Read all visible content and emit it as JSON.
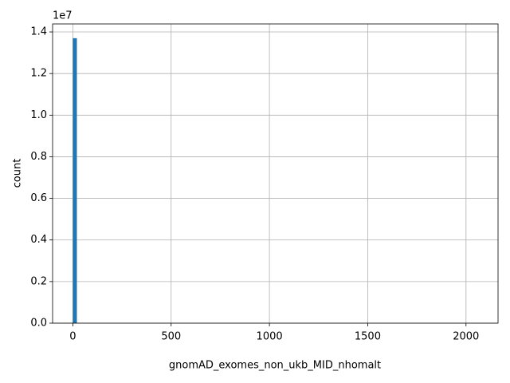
{
  "chart_data": {
    "type": "histogram",
    "xlabel": "gnomAD_exomes_non_ukb_MID_nhomalt",
    "ylabel": "count",
    "y_offset_label": "1e7",
    "color": "#1f77b4",
    "grid": true,
    "bins": [
      0,
      20.6,
      41.2,
      61.8,
      82.4,
      103,
      123.6,
      144.2,
      164.8,
      185.4,
      206,
      226.6,
      247.2,
      267.8,
      288.4,
      309,
      329.6,
      350.2,
      370.8,
      391.4,
      412,
      432.6,
      453.2,
      473.8,
      494.4,
      515,
      535.6,
      556.2,
      576.8,
      597.4,
      618,
      638.6,
      659.2,
      679.8,
      700.4,
      721,
      741.6,
      762.2,
      782.8,
      803.4,
      824,
      844.6,
      865.2,
      885.8,
      906.4,
      927,
      947.6,
      968.2,
      988.8,
      1009.4,
      1030,
      1050.6,
      1071.2,
      1091.8,
      1112.4,
      1133,
      1153.6,
      1174.2,
      1194.8,
      1215.4,
      1236,
      1256.6,
      1277.2,
      1297.8,
      1318.4,
      1339,
      1359.6,
      1380.2,
      1400.8,
      1421.4,
      1442,
      1462.6,
      1483.2,
      1503.8,
      1524.4,
      1545,
      1565.6,
      1586.2,
      1606.8,
      1627.4,
      1648,
      1668.6,
      1689.2,
      1709.8,
      1730.4,
      1751,
      1771.6,
      1792.2,
      1812.8,
      1833.4,
      1854,
      1874.6,
      1895.2,
      1915.8,
      1936.4,
      1957,
      1977.6,
      1998.2,
      2018.8,
      2039.4,
      2060
    ],
    "values": [
      13700000,
      0,
      0,
      0,
      0,
      0,
      0,
      0,
      0,
      0,
      0,
      0,
      0,
      0,
      0,
      0,
      0,
      0,
      0,
      0,
      0,
      0,
      0,
      0,
      0,
      0,
      0,
      0,
      0,
      0,
      0,
      0,
      0,
      0,
      0,
      0,
      0,
      0,
      0,
      0,
      0,
      0,
      0,
      0,
      0,
      0,
      0,
      0,
      0,
      0,
      0,
      0,
      0,
      0,
      0,
      0,
      0,
      0,
      0,
      0,
      0,
      0,
      0,
      0,
      0,
      0,
      0,
      0,
      0,
      0,
      0,
      0,
      0,
      0,
      0,
      0,
      0,
      0,
      0,
      0,
      0,
      0,
      0,
      0,
      0,
      0,
      0,
      0,
      0,
      0,
      0,
      0,
      0,
      0,
      0,
      0,
      0,
      0,
      0,
      0
    ],
    "xlim": [
      -103,
      2163
    ],
    "xticks": [
      0,
      500,
      1000,
      1500,
      2000
    ],
    "ylim": [
      0,
      14385000
    ],
    "yticks": [
      {
        "value": 0,
        "label": "0.0"
      },
      {
        "value": 2000000,
        "label": "0.2"
      },
      {
        "value": 4000000,
        "label": "0.4"
      },
      {
        "value": 6000000,
        "label": "0.6"
      },
      {
        "value": 8000000,
        "label": "0.8"
      },
      {
        "value": 10000000,
        "label": "1.0"
      },
      {
        "value": 12000000,
        "label": "1.2"
      },
      {
        "value": 14000000,
        "label": "1.4"
      }
    ]
  }
}
